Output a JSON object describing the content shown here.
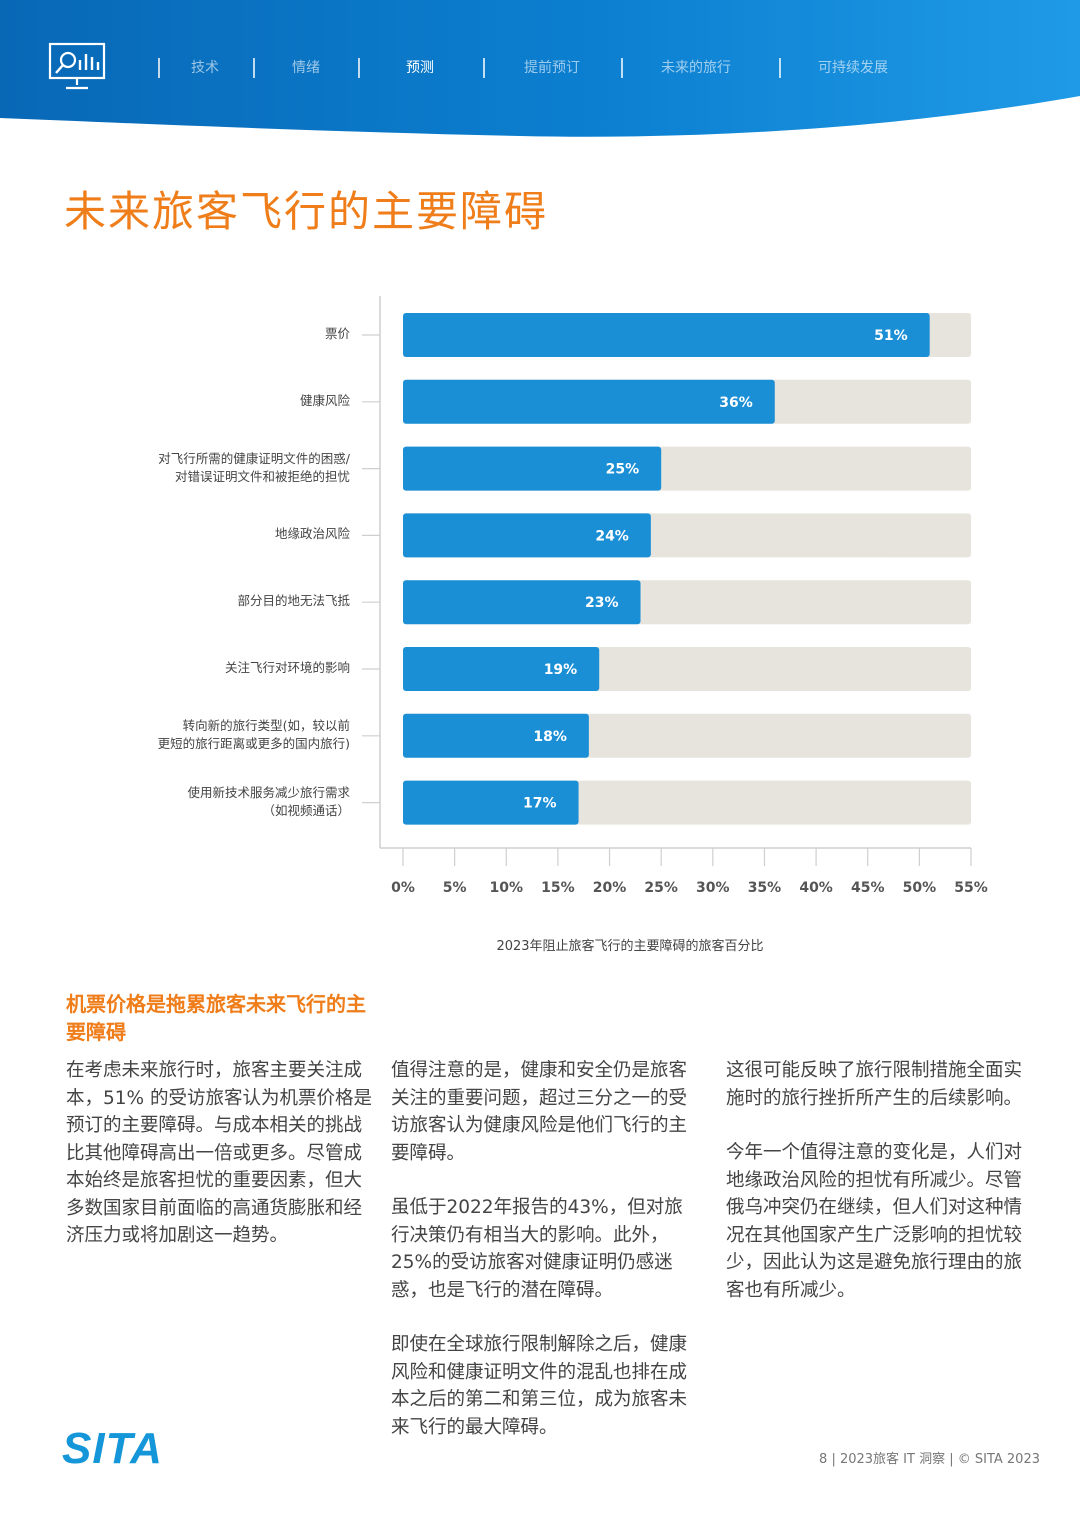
{
  "header": {
    "nav_items": [
      {
        "label": "技术",
        "active": false
      },
      {
        "label": "情绪",
        "active": false
      },
      {
        "label": "预测",
        "active": true
      },
      {
        "label": "提前预订",
        "active": false
      },
      {
        "label": "未来的旅行",
        "active": false
      },
      {
        "label": "可持续发展",
        "active": false
      }
    ],
    "brand_color": "#0a79c9"
  },
  "page_title": "未来旅客飞行的主要障碍",
  "chart_data": {
    "type": "bar",
    "orientation": "horizontal",
    "categories": [
      [
        "票价"
      ],
      [
        "健康风险"
      ],
      [
        "对飞行所需的健康证明文件的困惑/",
        "对错误证明文件和被拒绝的担忧"
      ],
      [
        "地缘政治风险"
      ],
      [
        "部分目的地无法飞抵"
      ],
      [
        "关注飞行对环境的影响"
      ],
      [
        "转向新的旅行类型(如，较以前",
        "更短的旅行距离或更多的国内旅行)"
      ],
      [
        "使用新技术服务减少旅行需求",
        "（如视频通话）"
      ]
    ],
    "values": [
      51,
      36,
      25,
      24,
      23,
      19,
      18,
      17
    ],
    "value_labels": [
      "51%",
      "36%",
      "25%",
      "24%",
      "23%",
      "19%",
      "18%",
      "17%"
    ],
    "xlim": [
      0,
      55
    ],
    "x_ticks": [
      "0%",
      "5%",
      "10%",
      "15%",
      "20%",
      "25%",
      "30%",
      "35%",
      "40%",
      "45%",
      "50%",
      "55%"
    ],
    "xlabel": "2023年阻止旅客飞行的主要障碍的旅客百分比",
    "bar_color": "#1b8fd6",
    "track_color": "#e6e4dc"
  },
  "section_heading": "机票价格是拖累旅客未来飞行的主要障碍",
  "columns": [
    [
      "在考虑未来旅行时，旅客主要关注成本，51% 的受访旅客认为机票价格是预订的主要障碍。与成本相关的挑战比其他障碍高出一倍或更多。尽管成本始终是旅客担忧的重要因素，但大多数国家目前面临的高通货膨胀和经济压力或将加剧这一趋势。"
    ],
    [
      "值得注意的是，健康和安全仍是旅客关注的重要问题，超过三分之一的受访旅客认为健康风险是他们飞行的主要障碍。",
      "虽低于2022年报告的43%，但对旅行决策仍有相当大的影响。此外，25%的受访旅客对健康证明仍感迷惑，也是飞行的潜在障碍。",
      "即使在全球旅行限制解除之后，健康风险和健康证明文件的混乱也排在成本之后的第二和第三位，成为旅客未来飞行的最大障碍。"
    ],
    [
      "这很可能反映了旅行限制措施全面实施时的旅行挫折所产生的后续影响。",
      "今年一个值得注意的变化是，人们对地缘政治风险的担忧有所减少。尽管俄乌冲突仍在继续，但人们对这种情况在其他国家产生广泛影响的担忧较少，因此认为这是避免旅行理由的旅客也有所减少。"
    ]
  ],
  "footer": {
    "logo": "SITA",
    "text": "8 | 2023旅客 IT 洞察 | © SITA 2023"
  }
}
